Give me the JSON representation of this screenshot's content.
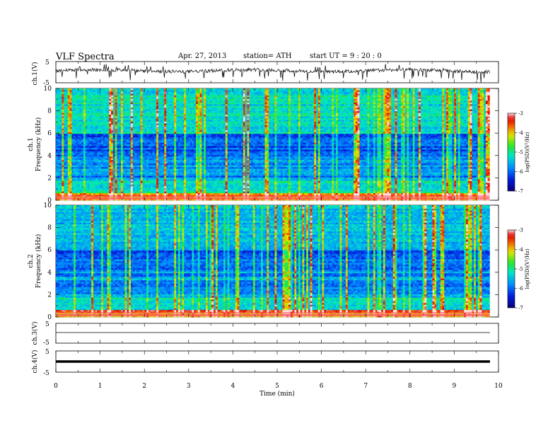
{
  "header": {
    "title": "VLF  Spectra",
    "date": "Apr. 27, 2013",
    "station": "station= ATH",
    "start": "start  UT  =   9  : 20 : 0"
  },
  "chart_data": [
    {
      "type": "line",
      "panel": "ch1",
      "ylabel": "ch.1(V)",
      "yticks": [
        "5",
        "-5"
      ],
      "ylim": [
        -5,
        5
      ],
      "trace": "noisy broadband signal centered near 0 V with frequent negative spikes",
      "x_range_min": [
        0,
        9.8
      ]
    },
    {
      "type": "heatmap",
      "panel": "ch1-spectrogram",
      "ylabel_channel": "ch.1",
      "ylabel": "Frequency  (kHz)",
      "yticks": [
        "0",
        "2",
        "4",
        "6",
        "8",
        "10"
      ],
      "ylim_khz": [
        0,
        10
      ],
      "colorbar": {
        "label": "log(PSD)(V²/Hz)",
        "range": [
          -7,
          -3
        ],
        "ticks": [
          "-3",
          "-4",
          "-5",
          "-6",
          "-7"
        ]
      }
    },
    {
      "type": "heatmap",
      "panel": "ch2-spectrogram",
      "ylabel_channel": "ch.2",
      "ylabel": "Frequency  (kHz)",
      "yticks": [
        "0",
        "2",
        "4",
        "6",
        "8",
        "10"
      ],
      "ylim_khz": [
        0,
        10
      ],
      "colorbar": {
        "label": "log(PSD)(V²/Hz)",
        "range": [
          -7,
          -3
        ],
        "ticks": [
          "-3",
          "-4",
          "-5",
          "-6",
          "-7"
        ]
      }
    },
    {
      "type": "line",
      "panel": "ch3",
      "ylabel": "ch.3(V)",
      "yticks": [
        "5",
        "-5"
      ],
      "ylim": [
        -5,
        5
      ],
      "trace": "flat line near 0 V"
    },
    {
      "type": "line",
      "panel": "ch4",
      "ylabel": "ch.4(V)",
      "yticks": [
        "5",
        "-5"
      ],
      "ylim": [
        -5,
        5
      ],
      "trace": "thick flat band near 0 V"
    }
  ],
  "xaxis": {
    "label": "Time  (min)",
    "ticks": [
      "0",
      "1",
      "2",
      "3",
      "4",
      "5",
      "6",
      "7",
      "8",
      "9",
      "10"
    ],
    "range": [
      0,
      10
    ]
  }
}
